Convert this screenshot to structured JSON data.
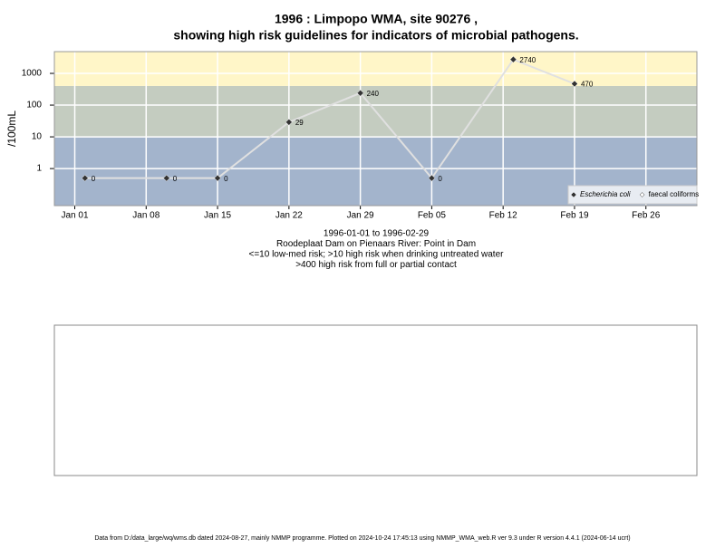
{
  "chart_data": {
    "type": "line",
    "title": "1996 : Limpopo WMA, site 90276 ,",
    "subtitle": "showing high risk guidelines for indicators of microbial pathogens.",
    "y_label": "/100mL",
    "x": [
      "1996-01-02",
      "1996-01-10",
      "1996-01-15",
      "1996-01-22",
      "1996-01-29",
      "1996-02-05",
      "1996-02-13",
      "1996-02-19"
    ],
    "series": [
      {
        "name": "Escherichia coli",
        "color": "#333333",
        "values": [
          0.5,
          0.5,
          0.5,
          29,
          240,
          0.5,
          2740,
          470
        ],
        "value_labels": [
          "0",
          "0",
          "0",
          "29",
          "240",
          "0",
          "2740",
          "470"
        ]
      },
      {
        "name": "faecal coliforms",
        "color": "#ffffff",
        "values": [
          null,
          null,
          null,
          null,
          null,
          null,
          null,
          null
        ]
      }
    ],
    "line_color": "#e0e0e0",
    "log_y": true,
    "ylim": [
      0.068,
      4850
    ],
    "yticks": [
      1,
      10,
      100,
      1000
    ],
    "xlim": [
      "1995-12-30",
      "1996-03-02"
    ],
    "xticks": [
      {
        "value": "1996-01-01",
        "label": "Jan 01"
      },
      {
        "value": "1996-01-08",
        "label": "Jan 08"
      },
      {
        "value": "1996-01-15",
        "label": "Jan 15"
      },
      {
        "value": "1996-01-22",
        "label": "Jan 22"
      },
      {
        "value": "1996-01-29",
        "label": "Jan 29"
      },
      {
        "value": "1996-02-05",
        "label": "Feb 05"
      },
      {
        "value": "1996-02-12",
        "label": "Feb 12"
      },
      {
        "value": "1996-02-19",
        "label": "Feb 19"
      },
      {
        "value": "1996-02-26",
        "label": "Feb 26"
      }
    ],
    "grid": true,
    "band_limits": [
      10,
      400
    ],
    "band_colors": [
      "#a3b4cc",
      "#c4ccc0",
      "#fff6c8"
    ],
    "legend": "bottom-right",
    "notes": [
      "1996-01-01 to 1996-02-29",
      "Roodeplaat Dam on Pienaars River: Point in Dam",
      "<=10 low-med risk; >10 high risk when drinking untreated water",
      ">400 high risk from full or partial contact"
    ],
    "footer": "Data from D:/data_large/wq/wms.db dated 2024-08-27, mainly NMMP programme. Plotted on 2024-10-24 17:45:13 using NMMP_WMA_web.R ver 9.3 under R version 4.4.1 (2024-06-14 ucrt)"
  }
}
